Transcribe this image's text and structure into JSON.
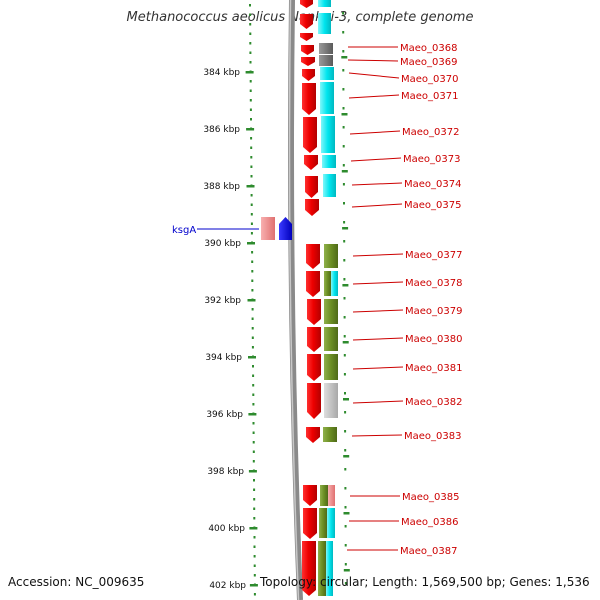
{
  "title": "Methanococcus aeolicus Nankai-3, complete genome",
  "footer": {
    "accession": "Accession: NC_009635",
    "summary": "Topology: circular; Length: 1,569,500 bp; Genes: 1,536"
  },
  "scale_labels": [
    "384 kbp",
    "386 kbp",
    "388 kbp",
    "390 kbp",
    "392 kbp",
    "394 kbp",
    "396 kbp",
    "398 kbp",
    "400 kbp",
    "402 kbp"
  ],
  "gene_labels": [
    "Maeo_0368",
    "Maeo_0369",
    "Maeo_0370",
    "Maeo_0371",
    "Maeo_0372",
    "Maeo_0373",
    "Maeo_0374",
    "Maeo_0375",
    "Maeo_0377",
    "Maeo_0378",
    "Maeo_0379",
    "Maeo_0380",
    "Maeo_0381",
    "Maeo_0382",
    "Maeo_0383",
    "Maeo_0385",
    "Maeo_0386",
    "Maeo_0387"
  ],
  "left_gene_label": "ksgA",
  "colors": {
    "label_red": "#cc0000",
    "label_blue": "#0000cc",
    "gene_red": "#ee0000",
    "cog_cyan": "#00e5ee",
    "cog_olive": "#6b8e23",
    "cog_gray": "#777777",
    "cog_lightgray": "#bbbbbb",
    "cog_pink": "#f08080",
    "tick_green": "#2e8b2e",
    "backbone_gray": "#8a8a8a"
  }
}
